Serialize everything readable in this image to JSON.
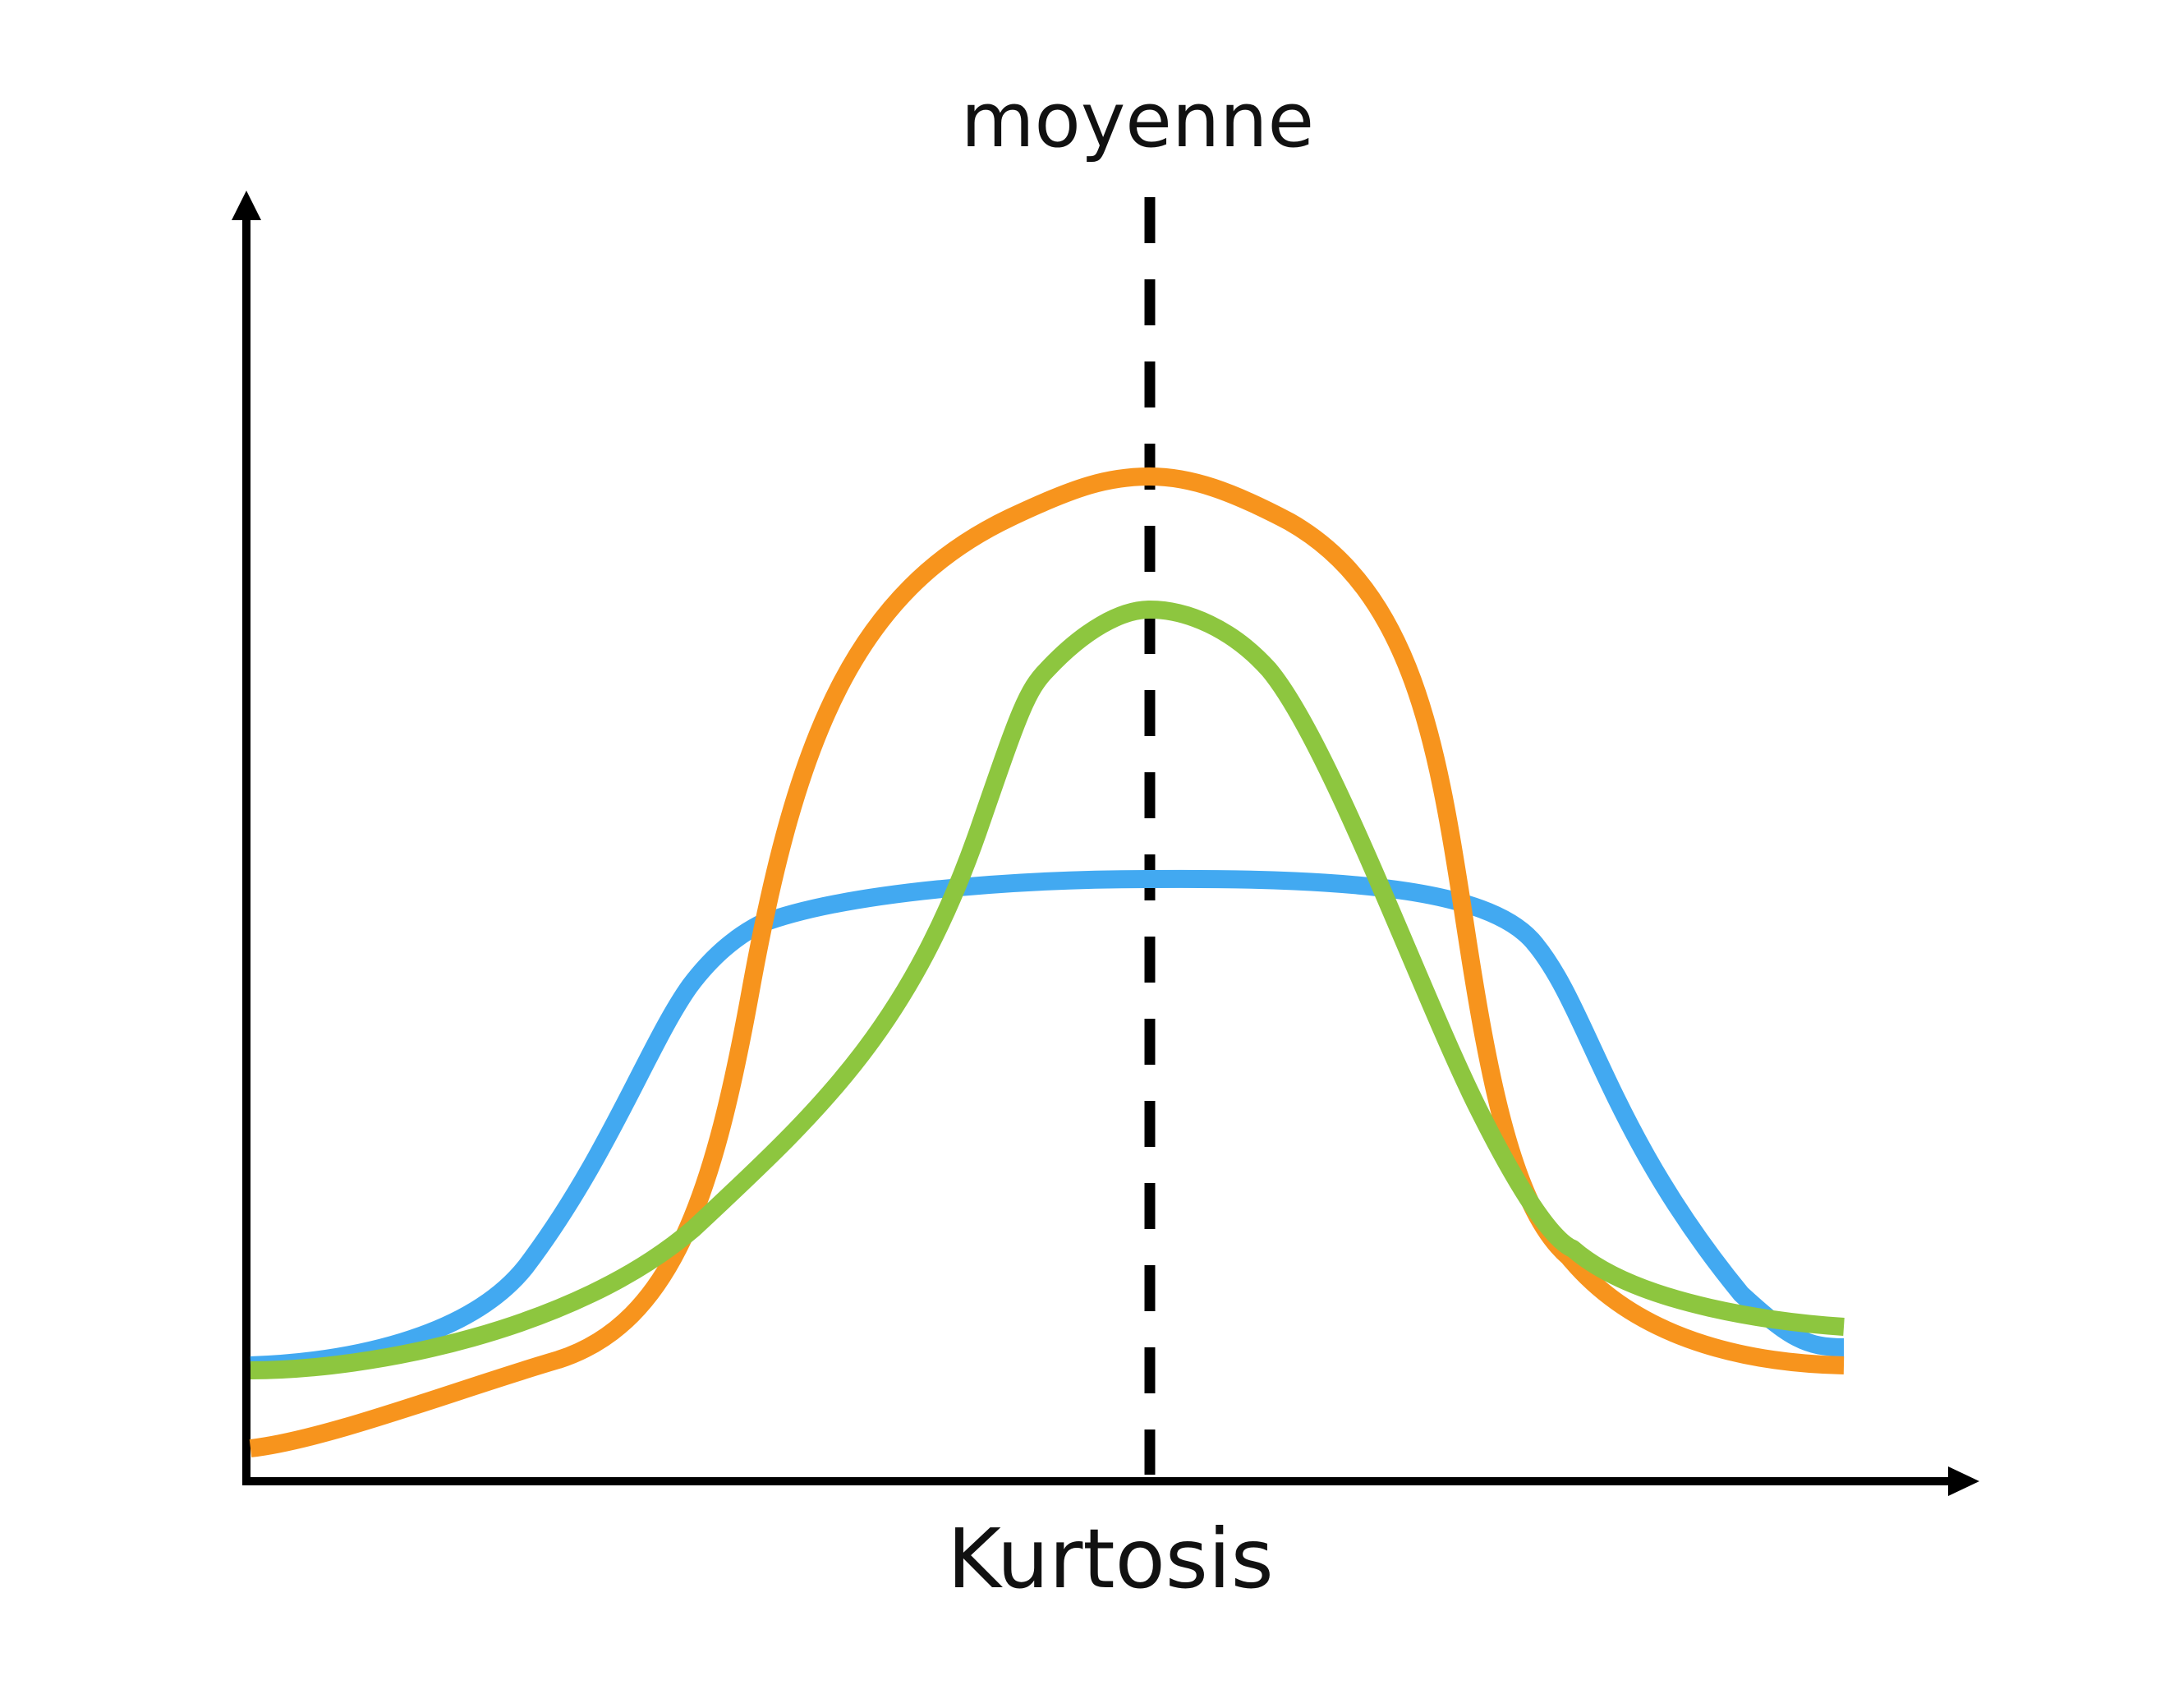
{
  "diagram": {
    "mean_label": "moyenne",
    "x_axis_label": "Kurtosis",
    "curves": [
      {
        "id": "platykurtic",
        "color": "#42a9f1"
      },
      {
        "id": "mesokurtic",
        "color": "#8dc63f"
      },
      {
        "id": "leptokurtic",
        "color": "#f7941d"
      }
    ]
  }
}
